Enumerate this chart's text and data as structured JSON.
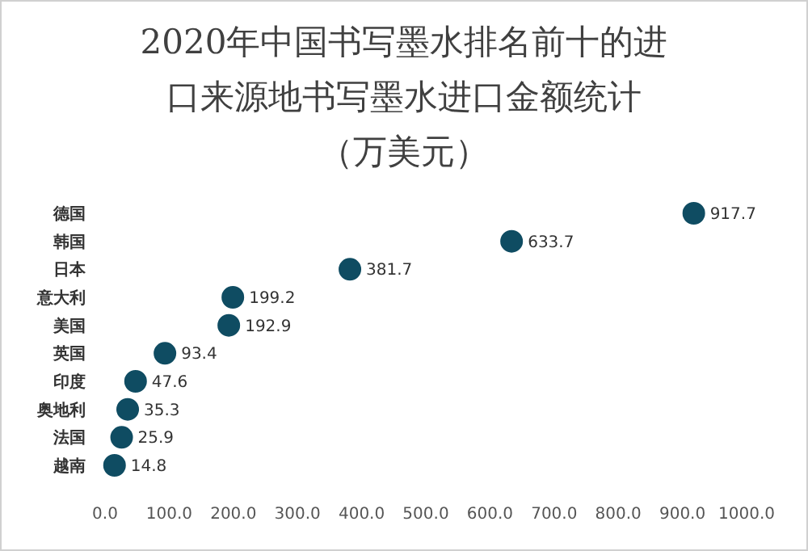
{
  "chart_data": {
    "type": "scatter",
    "orientation": "horizontal",
    "title": "2020年中国书写墨水排名前十的进口来源地书写墨水进口金额统计（万美元）",
    "categories": [
      "德国",
      "韩国",
      "日本",
      "意大利",
      "美国",
      "英国",
      "印度",
      "奥地利",
      "法国",
      "越南"
    ],
    "values": [
      917.7,
      633.7,
      381.7,
      199.2,
      192.9,
      93.4,
      47.6,
      35.3,
      25.9,
      14.8
    ],
    "color": "#0f4c62",
    "marker": "circle",
    "data_labels": true,
    "grid": false,
    "xlim": [
      0,
      1000
    ],
    "xticks": [
      {
        "value": 0,
        "label": "0.0"
      },
      {
        "value": 100,
        "label": "100.0"
      },
      {
        "value": 200,
        "label": "200.0"
      },
      {
        "value": 300,
        "label": "300.0"
      },
      {
        "value": 400,
        "label": "400.0"
      },
      {
        "value": 500,
        "label": "500.0"
      },
      {
        "value": 600,
        "label": "600.0"
      },
      {
        "value": 700,
        "label": "700.0"
      },
      {
        "value": 800,
        "label": "800.0"
      },
      {
        "value": 900,
        "label": "900.0"
      },
      {
        "value": 1000,
        "label": "1000.0"
      }
    ]
  }
}
